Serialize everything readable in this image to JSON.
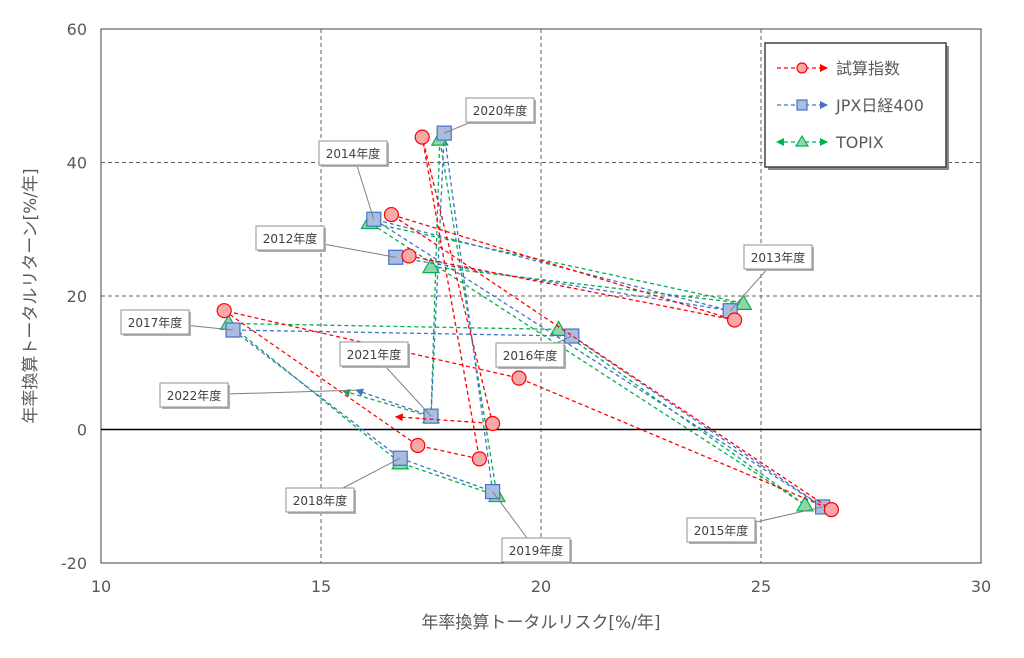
{
  "chart_data": {
    "type": "scatter",
    "xlabel": "年率換算トータルリスク[%/年]",
    "ylabel": "年率換算トータルリターン[%/年]",
    "xlim": [
      10,
      30
    ],
    "ylim": [
      -20,
      60
    ],
    "x_ticks": [
      10,
      15,
      20,
      25,
      30
    ],
    "y_ticks": [
      -20,
      0,
      20,
      40,
      60
    ],
    "x_tick_labels": [
      "10",
      "15",
      "20",
      "25",
      "30"
    ],
    "y_tick_labels": [
      "-20",
      "0",
      "20",
      "40",
      "60"
    ],
    "grid": true,
    "legend_position": "top-right",
    "series": [
      {
        "name": "試算指数",
        "color": "#ff0000",
        "marker": "circle",
        "points": [
          {
            "x": 17.0,
            "y": 26.0
          },
          {
            "x": 24.4,
            "y": 16.4
          },
          {
            "x": 16.6,
            "y": 32.2
          },
          {
            "x": 26.6,
            "y": -12.0
          },
          {
            "x": 19.5,
            "y": 7.7
          },
          {
            "x": 12.8,
            "y": 17.8
          },
          {
            "x": 17.2,
            "y": -2.4
          },
          {
            "x": 18.6,
            "y": -4.4
          },
          {
            "x": 17.3,
            "y": 43.8
          },
          {
            "x": 18.9,
            "y": 0.9
          },
          {
            "x": 16.7,
            "y": 1.9
          }
        ]
      },
      {
        "name": "JPX日経400",
        "color": "#4472c4",
        "marker": "square",
        "points": [
          {
            "x": 16.7,
            "y": 25.8
          },
          {
            "x": 24.3,
            "y": 17.8
          },
          {
            "x": 16.2,
            "y": 31.5
          },
          {
            "x": 26.4,
            "y": -11.6
          },
          {
            "x": 20.7,
            "y": 14.0
          },
          {
            "x": 13.0,
            "y": 14.9
          },
          {
            "x": 16.8,
            "y": -4.3
          },
          {
            "x": 18.9,
            "y": -9.3
          },
          {
            "x": 17.8,
            "y": 44.4
          },
          {
            "x": 17.5,
            "y": 2.0
          },
          {
            "x": 15.8,
            "y": 5.9
          }
        ]
      },
      {
        "name": "TOPIX",
        "color": "#00b050",
        "marker": "triangle",
        "points": [
          {
            "x": 17.5,
            "y": 24.4
          },
          {
            "x": 24.6,
            "y": 18.9
          },
          {
            "x": 16.1,
            "y": 31.0
          },
          {
            "x": 26.0,
            "y": -11.3
          },
          {
            "x": 20.4,
            "y": 15.0
          },
          {
            "x": 12.9,
            "y": 15.9
          },
          {
            "x": 16.8,
            "y": -5.0
          },
          {
            "x": 19.0,
            "y": -9.9
          },
          {
            "x": 17.7,
            "y": 43.5
          },
          {
            "x": 17.5,
            "y": 1.9
          },
          {
            "x": 15.5,
            "y": 5.8
          }
        ]
      }
    ],
    "annotations": [
      {
        "text": "2012年度",
        "point_index": 0
      },
      {
        "text": "2013年度",
        "point_index": 1
      },
      {
        "text": "2014年度",
        "point_index": 2
      },
      {
        "text": "2015年度",
        "point_index": 3
      },
      {
        "text": "2016年度",
        "point_index": 4
      },
      {
        "text": "2017年度",
        "point_index": 5
      },
      {
        "text": "2018年度",
        "point_index": 6
      },
      {
        "text": "2019年度",
        "point_index": 7
      },
      {
        "text": "2020年度",
        "point_index": 8
      },
      {
        "text": "2021年度",
        "point_index": 9
      },
      {
        "text": "2022年度",
        "point_index": 10
      }
    ]
  }
}
